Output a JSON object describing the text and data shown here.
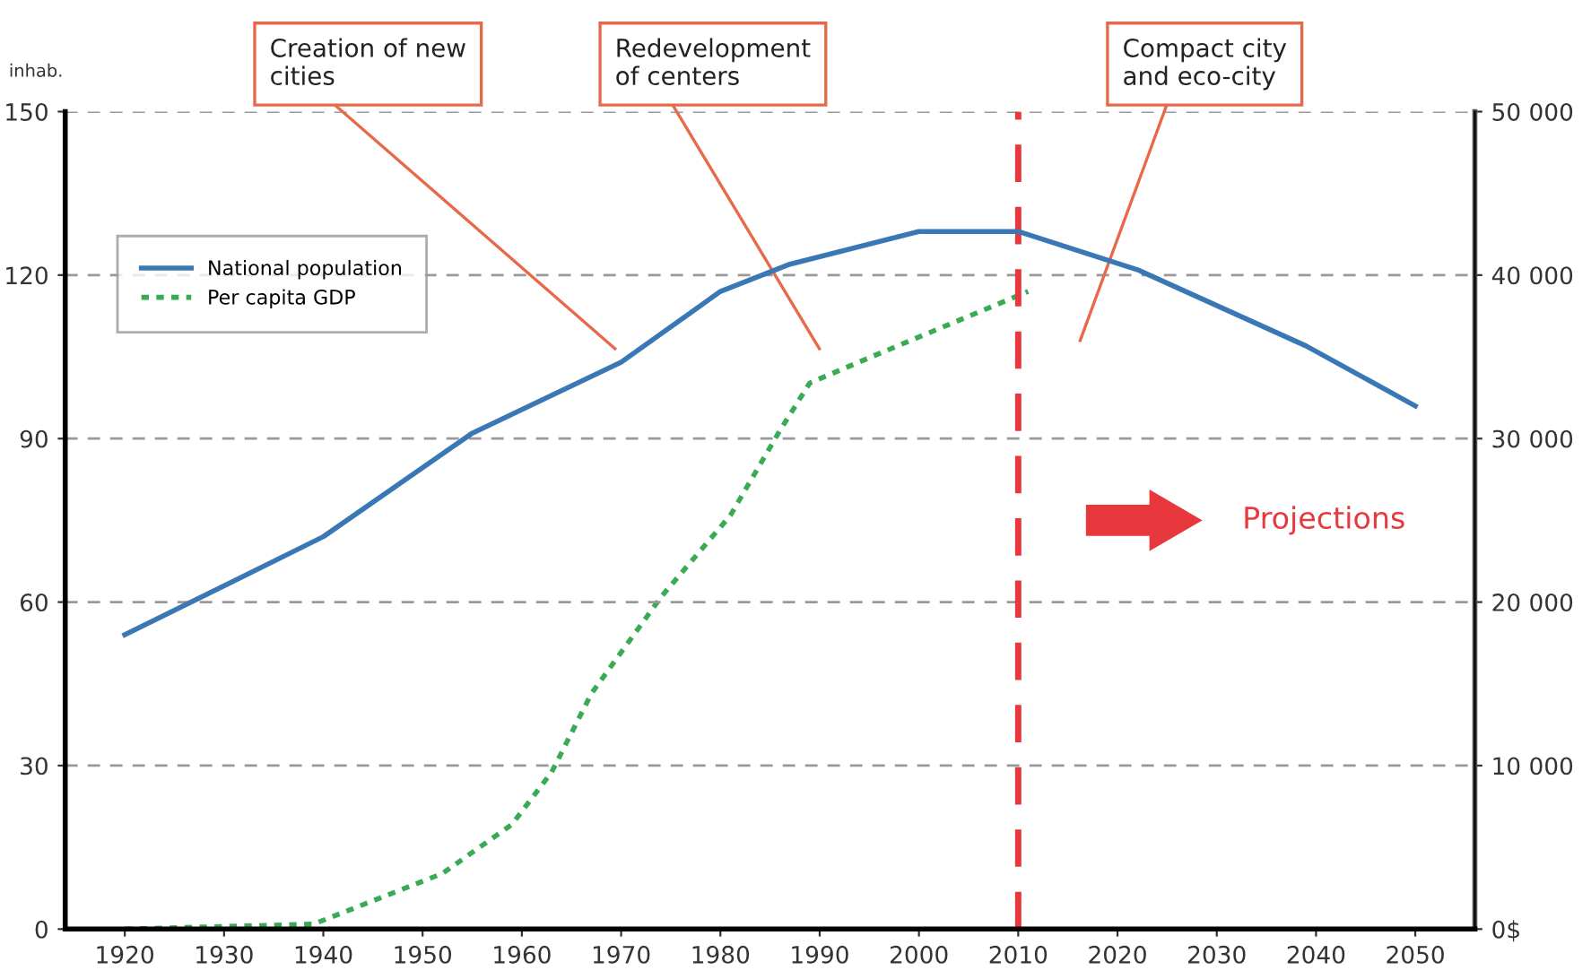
{
  "chart_data": {
    "type": "line",
    "ylabel": "inhab.",
    "x": [
      1920,
      1940,
      1955,
      1970,
      1980,
      1987,
      2000,
      2010,
      2022,
      2039,
      2050
    ],
    "series": [
      {
        "name": "National population",
        "color": "#3a78b5",
        "line_style": "solid",
        "values": [
          54,
          72,
          91,
          104,
          117,
          122,
          128,
          128,
          121,
          107,
          96
        ]
      },
      {
        "name": "Per capita GDP",
        "color": "#3aaa55",
        "line_style": "dotted",
        "axis": "y2",
        "x": [
          1920,
          1939,
          1952,
          1959,
          1963,
          1967,
          1974,
          1981,
          1986,
          1989,
          1996,
          2011
        ],
        "values": [
          0,
          300,
          3400,
          6400,
          9600,
          14400,
          20300,
          25300,
          30500,
          33400,
          35200,
          39000
        ]
      }
    ],
    "xlim": [
      1914,
      2056
    ],
    "xticks": [
      1920,
      1930,
      1940,
      1950,
      1960,
      1970,
      1980,
      1990,
      2000,
      2010,
      2020,
      2030,
      2040,
      2050
    ],
    "ylim": [
      0,
      150
    ],
    "yticks": [
      0,
      30,
      60,
      90,
      120,
      150
    ],
    "y2lim": [
      0,
      50000
    ],
    "y2ticks": [
      {
        "value": 0,
        "label": "0$"
      },
      {
        "value": 10000,
        "label": "10 000"
      },
      {
        "value": 20000,
        "label": "20 000"
      },
      {
        "value": 30000,
        "label": "30 000"
      },
      {
        "value": 40000,
        "label": "40 000"
      },
      {
        "value": 50000,
        "label": "50 000"
      }
    ],
    "grid": "y",
    "legend": "top left",
    "ref_lines": [
      {
        "axis": "x",
        "value": 2010,
        "color": "#e8383d",
        "line_style": "dashed"
      }
    ],
    "annotations": [
      "Creation of new\ncities",
      "Redevelopment\nof centers",
      "Compact city\nand eco-city",
      "Projections"
    ]
  }
}
